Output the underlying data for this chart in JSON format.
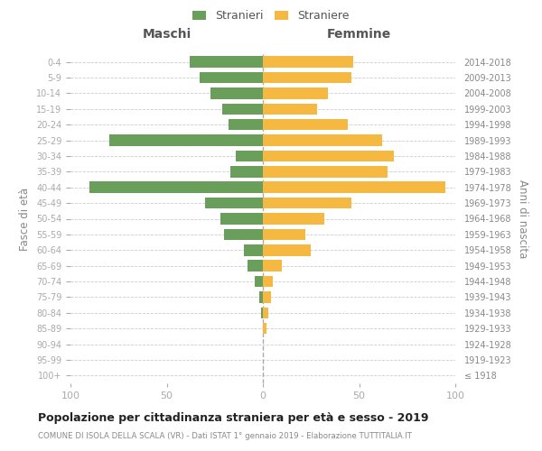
{
  "age_groups": [
    "100+",
    "95-99",
    "90-94",
    "85-89",
    "80-84",
    "75-79",
    "70-74",
    "65-69",
    "60-64",
    "55-59",
    "50-54",
    "45-49",
    "40-44",
    "35-39",
    "30-34",
    "25-29",
    "20-24",
    "15-19",
    "10-14",
    "5-9",
    "0-4"
  ],
  "birth_years": [
    "≤ 1918",
    "1919-1923",
    "1924-1928",
    "1929-1933",
    "1934-1938",
    "1939-1943",
    "1944-1948",
    "1949-1953",
    "1954-1958",
    "1959-1963",
    "1964-1968",
    "1969-1973",
    "1974-1978",
    "1979-1983",
    "1984-1988",
    "1989-1993",
    "1994-1998",
    "1999-2003",
    "2004-2008",
    "2009-2013",
    "2014-2018"
  ],
  "males": [
    0,
    0,
    0,
    0,
    1,
    2,
    4,
    8,
    10,
    20,
    22,
    30,
    90,
    17,
    14,
    80,
    18,
    21,
    27,
    33,
    38
  ],
  "females": [
    0,
    0,
    0,
    2,
    3,
    4,
    5,
    10,
    25,
    22,
    32,
    46,
    95,
    65,
    68,
    62,
    44,
    28,
    34,
    46,
    47
  ],
  "male_color": "#6a9e5b",
  "female_color": "#f5b942",
  "background_color": "#ffffff",
  "grid_color": "#cccccc",
  "title": "Popolazione per cittadinanza straniera per età e sesso - 2019",
  "subtitle": "COMUNE DI ISOLA DELLA SCALA (VR) - Dati ISTAT 1° gennaio 2019 - Elaborazione TUTTITALIA.IT",
  "ylabel_left": "Fasce di età",
  "ylabel_right": "Anni di nascita",
  "xlabel_min": -100,
  "xlabel_max": 100,
  "legend_stranieri": "Stranieri",
  "legend_straniere": "Straniere",
  "header_maschi": "Maschi",
  "header_femmine": "Femmine",
  "bar_height": 0.72
}
